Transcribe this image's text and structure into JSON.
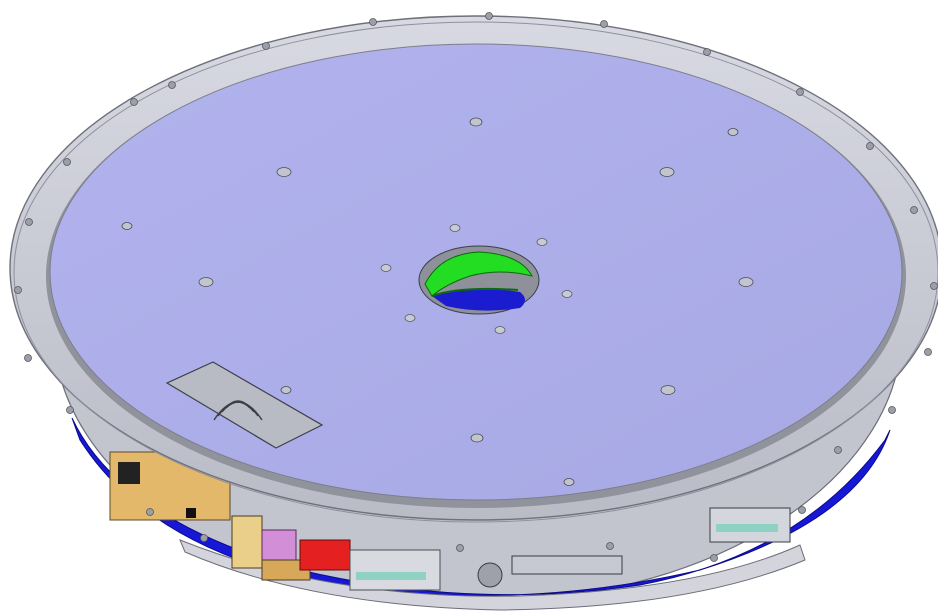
{
  "scene": {
    "subject": "",
    "colors": {
      "background": "#ffffff",
      "top_plate": "#aeb0ea",
      "flange_ring": "#c9cbd6",
      "flange_edge": "#8e909c",
      "base_housing": "#1616d8",
      "center_ring": "#22dd22",
      "center_hole_blue": "#1b1bd0",
      "bracket_tan": "#e4b86a",
      "connector_red": "#e42020",
      "connector_pink": "#d28fd8",
      "plate_grey": "#b4b4bc"
    }
  }
}
